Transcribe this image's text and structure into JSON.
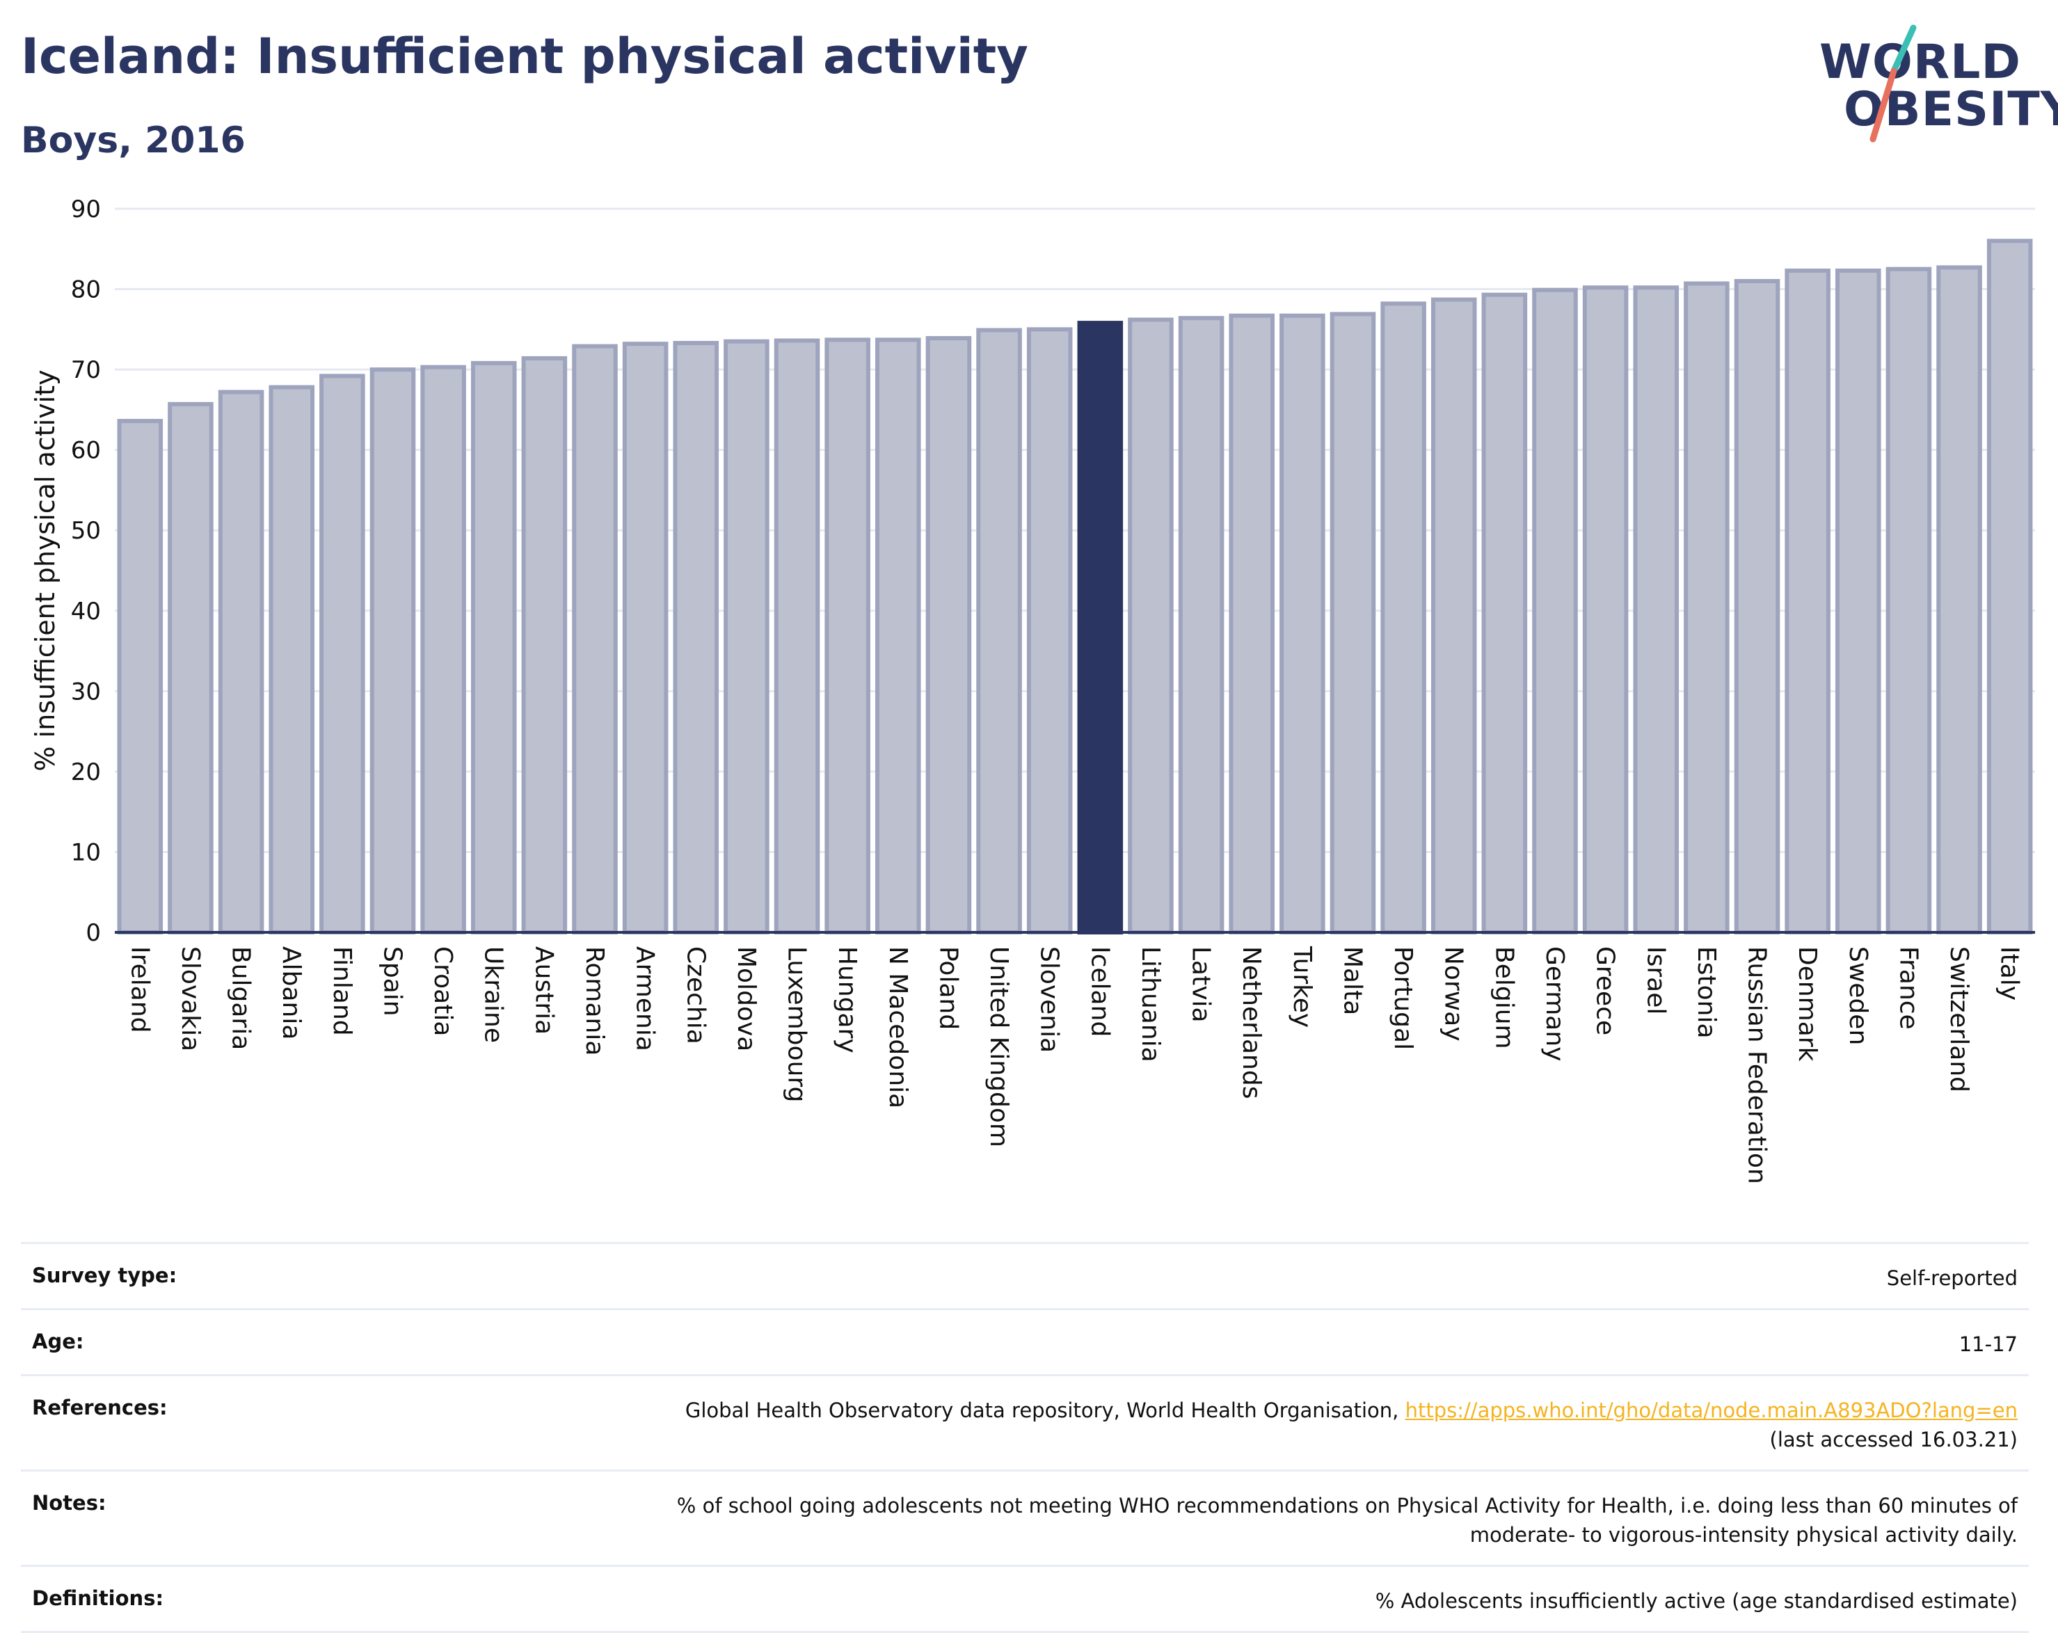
{
  "header": {
    "title": "Iceland: Insufficient physical activity",
    "subtitle": "Boys, 2016",
    "logo_line1": "WORLD",
    "logo_line2": "OBESITY"
  },
  "colors": {
    "bar_fill": "#bcc0cf",
    "bar_stroke": "#9ea4bd",
    "highlight": "#2a3561",
    "grid": "#e6e9f0",
    "text": "#2a3561",
    "logo_teal": "#3bbfb4",
    "logo_coral": "#e7705e",
    "link": "#f5b31f"
  },
  "chart_data": {
    "type": "bar",
    "title": "Iceland: Insufficient physical activity",
    "subtitle": "Boys, 2016",
    "xlabel": "",
    "ylabel": "% insufficient physical activity",
    "ylim": [
      0,
      90
    ],
    "yticks": [
      0,
      10,
      20,
      30,
      40,
      50,
      60,
      70,
      80,
      90
    ],
    "grid": true,
    "highlight": "Iceland",
    "categories": [
      "Ireland",
      "Slovakia",
      "Bulgaria",
      "Albania",
      "Finland",
      "Spain",
      "Croatia",
      "Ukraine",
      "Austria",
      "Romania",
      "Armenia",
      "Czechia",
      "Moldova",
      "Luxembourg",
      "Hungary",
      "N Macedonia",
      "Poland",
      "United Kingdom",
      "Slovenia",
      "Iceland",
      "Lithuania",
      "Latvia",
      "Netherlands",
      "Turkey",
      "Malta",
      "Portugal",
      "Norway",
      "Belgium",
      "Germany",
      "Greece",
      "Israel",
      "Estonia",
      "Russian Federation",
      "Denmark",
      "Sweden",
      "France",
      "Switzerland",
      "Italy"
    ],
    "values": [
      63.6,
      65.7,
      67.2,
      67.8,
      69.2,
      70.0,
      70.3,
      70.8,
      71.4,
      72.9,
      73.2,
      73.3,
      73.5,
      73.6,
      73.7,
      73.7,
      73.9,
      74.9,
      75.0,
      75.8,
      76.2,
      76.4,
      76.7,
      76.7,
      76.9,
      78.2,
      78.7,
      79.3,
      79.9,
      80.2,
      80.2,
      80.7,
      81.0,
      82.3,
      82.3,
      82.5,
      82.7,
      86.0
    ]
  },
  "info": {
    "rows": [
      {
        "label": "Survey type:",
        "value": "Self-reported"
      },
      {
        "label": "Age:",
        "value": "11-17"
      },
      {
        "label": "References:",
        "value": "Global Health Observatory data repository, World Health Organisation, ",
        "link": "https://apps.who.int/gho/data/node.main.A893ADO?lang=en",
        "value2": "(last accessed 16.03.21)"
      },
      {
        "label": "Notes:",
        "value": "% of school going adolescents not meeting WHO recommendations on Physical Activity for Health, i.e. doing less than 60 minutes of",
        "value2": "moderate- to vigorous-intensity physical activity daily."
      },
      {
        "label": "Definitions:",
        "value": "% Adolescents insufficiently active (age standardised estimate)"
      }
    ]
  }
}
